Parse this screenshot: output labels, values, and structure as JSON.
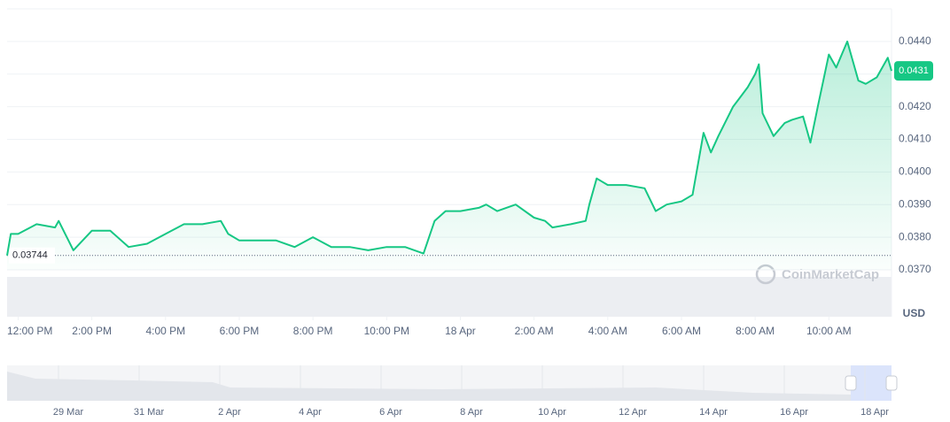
{
  "chart_data": {
    "type": "line",
    "currency": "USD",
    "watermark": "CoinMarketCap",
    "color": "#16c784",
    "reference": {
      "value": 0.03744,
      "label": "0.03744"
    },
    "current": {
      "value": 0.0431,
      "label": "0.0431"
    },
    "x": [
      -0.3,
      -0.2,
      0,
      0.5,
      1,
      1.1,
      1.5,
      2,
      2.5,
      3,
      3.5,
      4,
      4.5,
      5,
      5.5,
      5.7,
      6,
      6.5,
      7,
      7.5,
      8,
      8.5,
      9,
      9.5,
      10,
      10.5,
      11,
      11.3,
      11.6,
      12,
      12.5,
      12.7,
      13,
      13.5,
      14,
      14.3,
      14.5,
      15,
      15.4,
      15.5,
      15.7,
      16,
      16.5,
      17,
      17.3,
      17.6,
      18,
      18.3,
      18.6,
      18.8,
      19,
      19.4,
      19.6,
      19.8,
      20,
      20.1,
      20.2,
      20.5,
      20.8,
      21,
      21.3,
      21.5,
      21.7,
      22,
      22.2,
      22.5,
      22.8,
      23,
      23.3,
      23.6,
      23.7
    ],
    "values": [
      0.03744,
      0.0381,
      0.0381,
      0.0384,
      0.0383,
      0.0385,
      0.0376,
      0.0382,
      0.0382,
      0.0377,
      0.0378,
      0.0381,
      0.0384,
      0.0384,
      0.0385,
      0.0381,
      0.0379,
      0.0379,
      0.0379,
      0.0377,
      0.038,
      0.0377,
      0.0377,
      0.0376,
      0.0377,
      0.0377,
      0.0375,
      0.0385,
      0.0388,
      0.0388,
      0.0389,
      0.039,
      0.0388,
      0.039,
      0.0386,
      0.0385,
      0.0383,
      0.0384,
      0.0385,
      0.039,
      0.0398,
      0.0396,
      0.0396,
      0.0395,
      0.0388,
      0.039,
      0.0391,
      0.0393,
      0.0412,
      0.0406,
      0.0411,
      0.042,
      0.0423,
      0.0426,
      0.043,
      0.0433,
      0.0418,
      0.0411,
      0.0415,
      0.0416,
      0.0417,
      0.0409,
      0.042,
      0.0436,
      0.0432,
      0.044,
      0.0428,
      0.0427,
      0.0429,
      0.0435,
      0.0431
    ],
    "xlim": [
      -0.3,
      23.7
    ],
    "xticks": [
      {
        "value": 0,
        "label": "12:00 PM"
      },
      {
        "value": 2,
        "label": "2:00 PM"
      },
      {
        "value": 4,
        "label": "4:00 PM"
      },
      {
        "value": 6,
        "label": "6:00 PM"
      },
      {
        "value": 8,
        "label": "8:00 PM"
      },
      {
        "value": 10,
        "label": "10:00 PM"
      },
      {
        "value": 12,
        "label": "18 Apr"
      },
      {
        "value": 14,
        "label": "2:00 AM"
      },
      {
        "value": 16,
        "label": "4:00 AM"
      },
      {
        "value": 18,
        "label": "6:00 AM"
      },
      {
        "value": 20,
        "label": "8:00 AM"
      },
      {
        "value": 22,
        "label": "10:00 AM"
      }
    ],
    "ylim": [
      0.037,
      0.045
    ],
    "yticks": [
      {
        "value": 0.037,
        "label": "0.0370"
      },
      {
        "value": 0.038,
        "label": "0.0380"
      },
      {
        "value": 0.039,
        "label": "0.0390"
      },
      {
        "value": 0.04,
        "label": "0.0400"
      },
      {
        "value": 0.041,
        "label": "0.0410"
      },
      {
        "value": 0.042,
        "label": "0.0420"
      },
      {
        "value": 0.043,
        "label": "0.0430"
      },
      {
        "value": 0.044,
        "label": "0.0440"
      }
    ],
    "grid": true,
    "navigator": {
      "labels": [
        "29 Mar",
        "31 Mar",
        "2 Apr",
        "4 Apr",
        "6 Apr",
        "8 Apr",
        "10 Apr",
        "12 Apr",
        "14 Apr",
        "16 Apr",
        "18 Apr"
      ]
    }
  }
}
